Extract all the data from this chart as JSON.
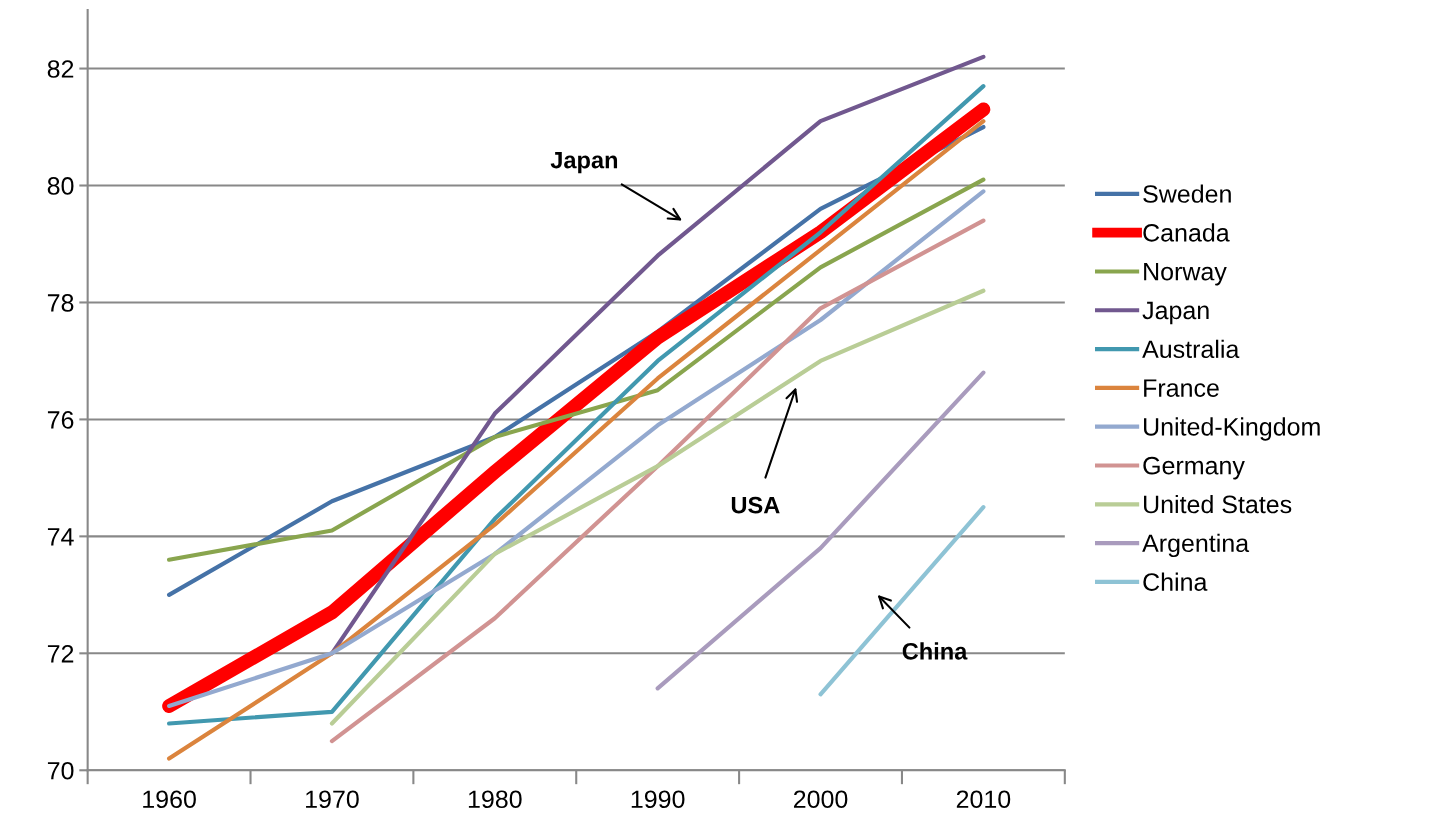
{
  "chart_data": {
    "type": "line",
    "categories": [
      "1960",
      "1970",
      "1980",
      "1990",
      "2000",
      "2010"
    ],
    "ylim": [
      70,
      83
    ],
    "yticks": [
      70,
      72,
      74,
      76,
      78,
      80,
      82
    ],
    "grid": "y",
    "legend": "right",
    "marker": "none",
    "line_style": "solid",
    "series": [
      {
        "name": "Sweden",
        "color": "#4572a7",
        "values": [
          73.0,
          74.6,
          75.7,
          77.5,
          79.6,
          81.0
        ]
      },
      {
        "name": "Canada",
        "color": "#ff0000",
        "values": [
          71.1,
          72.7,
          75.1,
          77.4,
          79.2,
          81.3
        ]
      },
      {
        "name": "Norway",
        "color": "#89a54e",
        "values": [
          73.6,
          74.1,
          75.7,
          76.5,
          78.6,
          80.1
        ]
      },
      {
        "name": "Japan",
        "color": "#71588f",
        "values": [
          null,
          72.0,
          76.1,
          78.8,
          81.1,
          82.2
        ]
      },
      {
        "name": "Australia",
        "color": "#4198af",
        "values": [
          70.8,
          71.0,
          74.3,
          77.0,
          79.2,
          81.7
        ]
      },
      {
        "name": "France",
        "color": "#db843d",
        "values": [
          70.2,
          72.0,
          74.2,
          76.7,
          78.9,
          81.1
        ]
      },
      {
        "name": "United-Kingdom",
        "color": "#93a9cf",
        "values": [
          71.1,
          72.0,
          73.7,
          75.9,
          77.7,
          79.9
        ]
      },
      {
        "name": "Germany",
        "color": "#d19392",
        "values": [
          null,
          70.5,
          72.6,
          75.2,
          77.9,
          79.4
        ]
      },
      {
        "name": "United States",
        "color": "#b9cd96",
        "values": [
          null,
          70.8,
          73.7,
          75.2,
          77.0,
          78.2
        ]
      },
      {
        "name": "Argentina",
        "color": "#a99bbd",
        "values": [
          null,
          null,
          null,
          71.4,
          73.8,
          76.8
        ]
      },
      {
        "name": "China",
        "color": "#8ec3d5",
        "values": [
          null,
          null,
          null,
          null,
          71.3,
          74.5
        ]
      }
    ],
    "annotations": [
      "Japan",
      "USA",
      "China"
    ]
  }
}
